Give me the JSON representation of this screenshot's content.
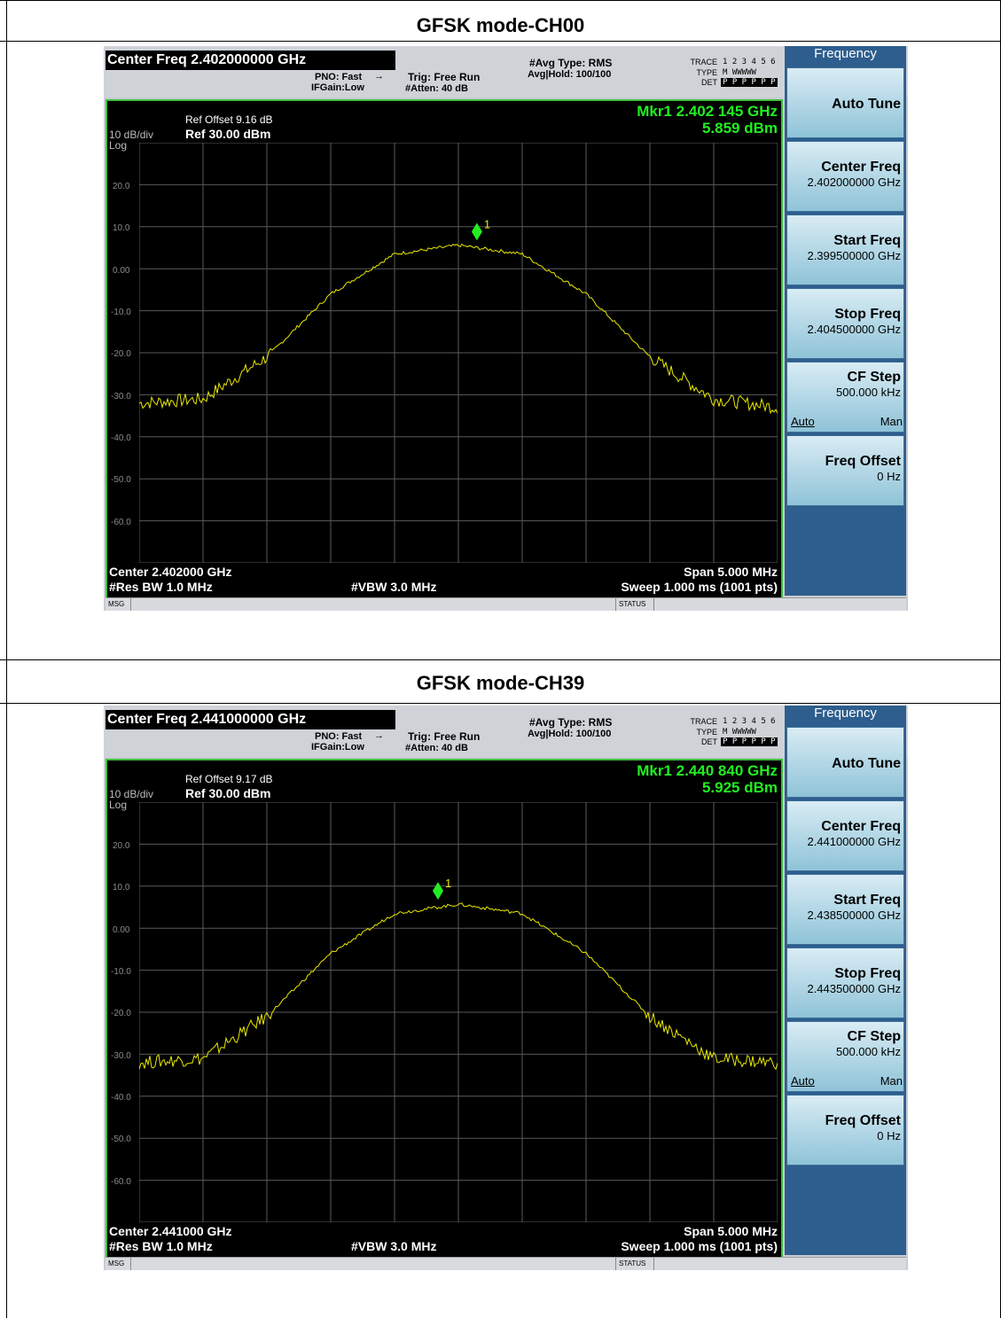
{
  "sections": [
    {
      "title": "GFSK mode-CH00",
      "analyzer": {
        "center_freq_header": "Center Freq 2.402000000 GHz",
        "pno": "PNO: Fast",
        "ifgain": "IFGain:Low",
        "trig": "Trig: Free Run",
        "atten": "#Atten: 40 dB",
        "avg_type": "#Avg Type: RMS",
        "avg_hold": "Avg|Hold: 100/100",
        "trace_label": "TRACE",
        "type_label": "TYPE",
        "det_label": "DET",
        "trace_nums": "1 2 3 4 5 6",
        "type_vals": "M WWWWW",
        "det_vals": "P P P P P P",
        "ref_offset": "Ref Offset 9.16 dB",
        "ref_level": "Ref 30.00 dBm",
        "scale": "10 dB/div",
        "log": "Log",
        "marker_freq": "Mkr1 2.402 145 GHz",
        "marker_level": "5.859 dBm",
        "marker_label": "1",
        "y_ticks": [
          "20.0",
          "10.0",
          "0.00",
          "-10.0",
          "-20.0",
          "-30.0",
          "-40.0",
          "-50.0",
          "-60.0"
        ],
        "center": "Center 2.402000 GHz",
        "span": "Span 5.000 MHz",
        "res_bw": "#Res BW 1.0 MHz",
        "vbw": "#VBW 3.0 MHz",
        "sweep": "Sweep  1.000 ms (1001 pts)",
        "msg": "MSG",
        "status": "STATUS"
      },
      "softkeys": {
        "header": "Frequency",
        "auto_tune": "Auto Tune",
        "center_freq_label": "Center Freq",
        "center_freq_value": "2.402000000 GHz",
        "start_freq_label": "Start Freq",
        "start_freq_value": "2.399500000 GHz",
        "stop_freq_label": "Stop Freq",
        "stop_freq_value": "2.404500000 GHz",
        "cf_step_label": "CF Step",
        "cf_step_value": "500.000 kHz",
        "auto": "Auto",
        "man": "Man",
        "freq_offset_label": "Freq Offset",
        "freq_offset_value": "0 Hz"
      },
      "chart_data": {
        "type": "line",
        "x_start_ghz": 2.3995,
        "x_stop_ghz": 2.4045,
        "ylim": [
          -70,
          30
        ],
        "marker": {
          "x_ghz": 2.402145,
          "y_dbm": 5.859
        },
        "trace_color": "#e8e800",
        "x": [
          2.3995,
          2.4,
          2.4005,
          2.401,
          2.4015,
          2.402,
          2.4025,
          2.403,
          2.4035,
          2.404,
          2.4045
        ],
        "values": [
          -32,
          -31,
          -21,
          -6,
          3.5,
          5.6,
          3.5,
          -6,
          -21,
          -31,
          -33
        ]
      }
    },
    {
      "title": "GFSK mode-CH39",
      "analyzer": {
        "center_freq_header": "Center Freq 2.441000000 GHz",
        "pno": "PNO: Fast",
        "ifgain": "IFGain:Low",
        "trig": "Trig: Free Run",
        "atten": "#Atten: 40 dB",
        "avg_type": "#Avg Type: RMS",
        "avg_hold": "Avg|Hold: 100/100",
        "trace_label": "TRACE",
        "type_label": "TYPE",
        "det_label": "DET",
        "trace_nums": "1 2 3 4 5 6",
        "type_vals": "M WWWWW",
        "det_vals": "P P P P P P",
        "ref_offset": "Ref Offset 9.17 dB",
        "ref_level": "Ref 30.00 dBm",
        "scale": "10 dB/div",
        "log": "Log",
        "marker_freq": "Mkr1 2.440 840 GHz",
        "marker_level": "5.925 dBm",
        "marker_label": "1",
        "y_ticks": [
          "20.0",
          "10.0",
          "0.00",
          "-10.0",
          "-20.0",
          "-30.0",
          "-40.0",
          "-50.0",
          "-60.0"
        ],
        "center": "Center 2.441000 GHz",
        "span": "Span 5.000 MHz",
        "res_bw": "#Res BW 1.0 MHz",
        "vbw": "#VBW 3.0 MHz",
        "sweep": "Sweep  1.000 ms (1001 pts)",
        "msg": "MSG",
        "status": "STATUS"
      },
      "softkeys": {
        "header": "Frequency",
        "auto_tune": "Auto Tune",
        "center_freq_label": "Center Freq",
        "center_freq_value": "2.441000000 GHz",
        "start_freq_label": "Start Freq",
        "start_freq_value": "2.438500000 GHz",
        "stop_freq_label": "Stop Freq",
        "stop_freq_value": "2.443500000 GHz",
        "cf_step_label": "CF Step",
        "cf_step_value": "500.000 kHz",
        "auto": "Auto",
        "man": "Man",
        "freq_offset_label": "Freq Offset",
        "freq_offset_value": "0 Hz"
      },
      "chart_data": {
        "type": "line",
        "x_start_ghz": 2.4385,
        "x_stop_ghz": 2.4435,
        "ylim": [
          -70,
          30
        ],
        "marker": {
          "x_ghz": 2.44084,
          "y_dbm": 5.925
        },
        "trace_color": "#e8e800",
        "x": [
          2.4385,
          2.439,
          2.4395,
          2.44,
          2.4405,
          2.441,
          2.4415,
          2.442,
          2.4425,
          2.443,
          2.4435
        ],
        "values": [
          -32,
          -31,
          -21,
          -6,
          3.5,
          5.7,
          3.5,
          -6,
          -21,
          -31,
          -32
        ]
      }
    }
  ]
}
